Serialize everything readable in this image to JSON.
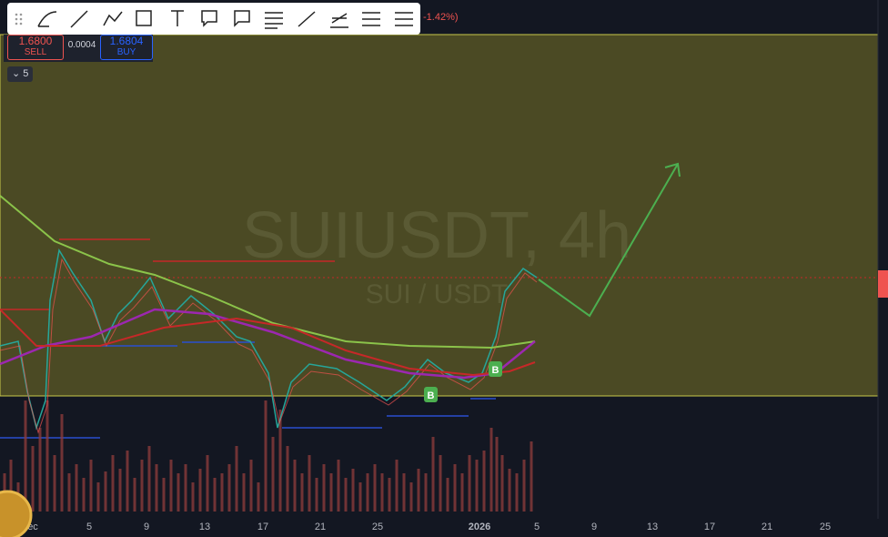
{
  "header": {
    "change": "-1.42%)"
  },
  "trade_panel": {
    "sell_price": "1.6800",
    "sell_label": "SELL",
    "spread": "0.0004",
    "buy_price": "1.6804",
    "buy_label": "BUY"
  },
  "interval": "5",
  "watermark": {
    "symbol": "SUIUSDT, 4h",
    "pair": "SUI / USDT"
  },
  "signals": [
    "B",
    "B"
  ],
  "x_axis": {
    "labels": [
      "ec",
      "5",
      "9",
      "13",
      "17",
      "21",
      "25",
      "2026",
      "5",
      "9",
      "13",
      "17",
      "21",
      "25"
    ]
  }
}
